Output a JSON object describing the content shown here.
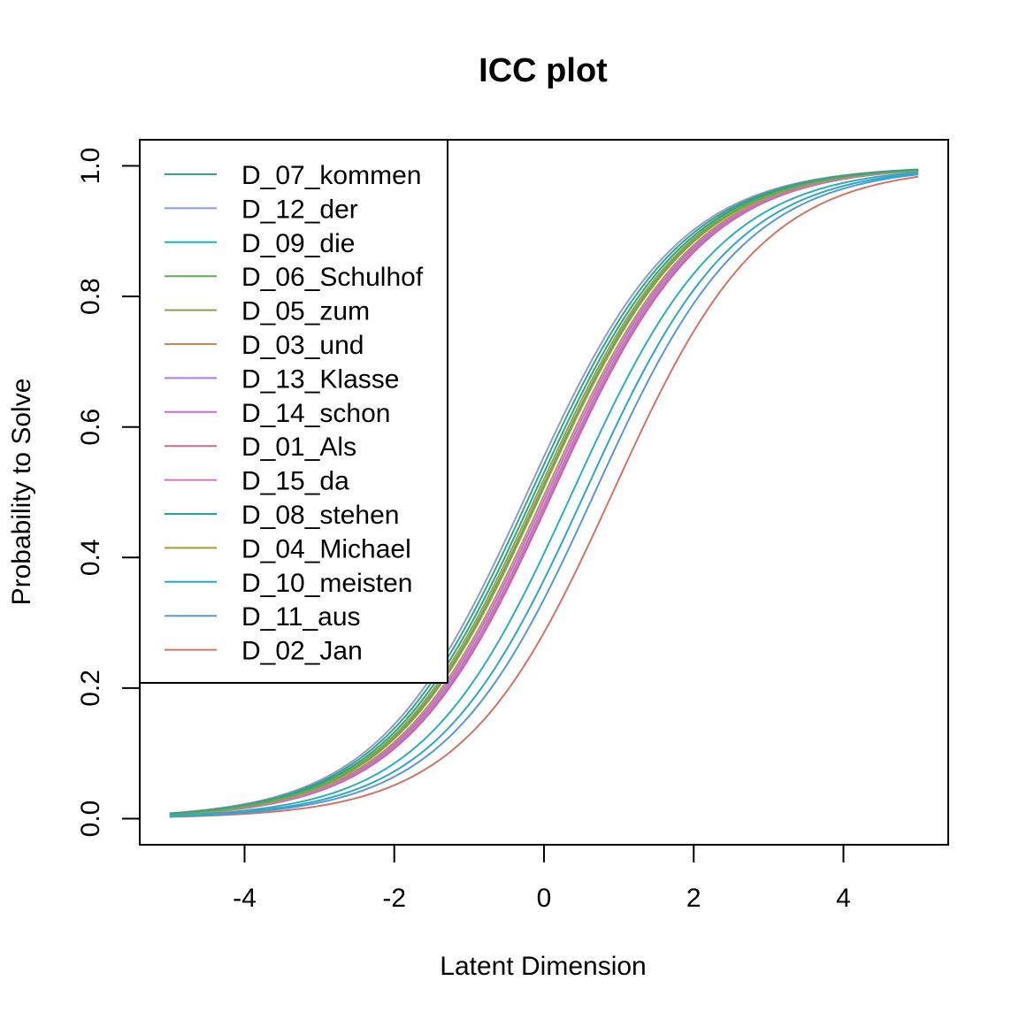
{
  "chart_data": {
    "type": "line",
    "title": "ICC plot",
    "xlabel": "Latent Dimension",
    "ylabel": "Probability to Solve",
    "xlim": [
      -5.4,
      5.4
    ],
    "ylim": [
      -0.04,
      1.04
    ],
    "x_range": [
      -5,
      5
    ],
    "xticks": [
      -4,
      -2,
      0,
      2,
      4
    ],
    "xtick_labels": [
      "-4",
      "-2",
      "0",
      "2",
      "4"
    ],
    "yticks": [
      0.0,
      0.2,
      0.4,
      0.6,
      0.8,
      1.0
    ],
    "ytick_labels": [
      "0.0",
      "0.2",
      "0.4",
      "0.6",
      "0.8",
      "1.0"
    ],
    "grid": false,
    "legend_position": "top-left",
    "model": "1PL logistic: P = 1 / (1 + exp(-(x - difficulty)))",
    "series": [
      {
        "name": "D_07_kommen",
        "difficulty": -0.17,
        "color": "#3aa37a"
      },
      {
        "name": "D_12_der",
        "difficulty": -0.22,
        "color": "#8e9bd3"
      },
      {
        "name": "D_09_die",
        "difficulty": 0.38,
        "color": "#2ab0b6"
      },
      {
        "name": "D_06_Schulhof",
        "difficulty": -0.05,
        "color": "#65aa56"
      },
      {
        "name": "D_05_zum",
        "difficulty": -0.03,
        "color": "#8f9f48"
      },
      {
        "name": "D_03_und",
        "difficulty": 0.02,
        "color": "#c98a5a"
      },
      {
        "name": "D_13_Klasse",
        "difficulty": 0.08,
        "color": "#b27ad8"
      },
      {
        "name": "D_14_schon",
        "difficulty": 0.05,
        "color": "#c46fd0"
      },
      {
        "name": "D_01_Als",
        "difficulty": 0.12,
        "color": "#d0678e"
      },
      {
        "name": "D_15_da",
        "difficulty": 0.1,
        "color": "#e072b8"
      },
      {
        "name": "D_08_stehen",
        "difficulty": -0.12,
        "color": "#22a793"
      },
      {
        "name": "D_04_Michael",
        "difficulty": -0.08,
        "color": "#a59a3a"
      },
      {
        "name": "D_10_meisten",
        "difficulty": 0.55,
        "color": "#2fa7c4"
      },
      {
        "name": "D_11_aus",
        "difficulty": 0.68,
        "color": "#5a97d6"
      },
      {
        "name": "D_02_Jan",
        "difficulty": 0.92,
        "color": "#cf7466"
      }
    ]
  }
}
